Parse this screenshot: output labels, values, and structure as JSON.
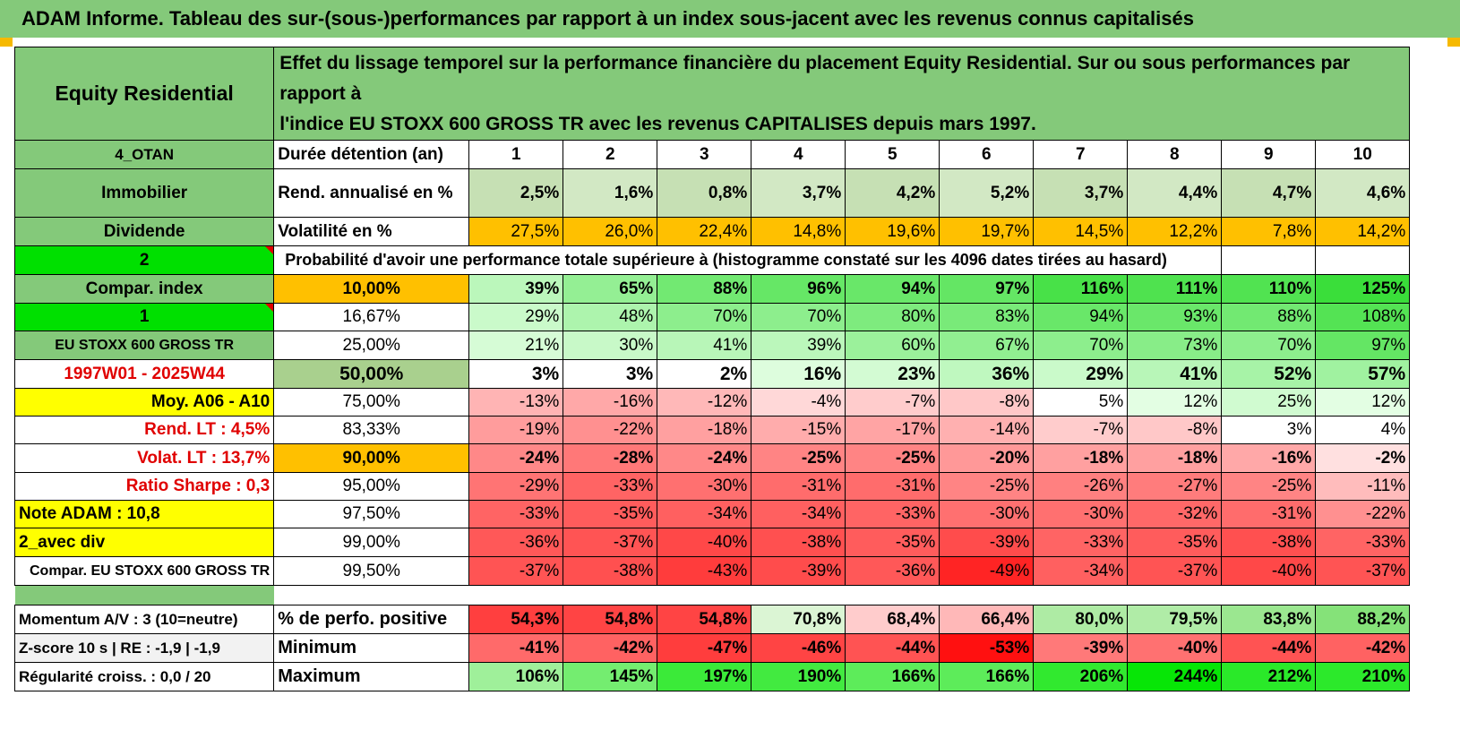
{
  "title": "ADAM Informe. Tableau des sur-(sous-)performances par rapport à un index sous-jacent avec les revenus connus capitalisés",
  "header": {
    "name": "Equity Residential",
    "description_line1": "Effet du lissage temporel sur la performance financière du placement Equity Residential. Sur ou sous performances par rapport à",
    "description_line2": "l'indice EU STOXX 600 GROSS TR avec les revenus CAPITALISES depuis mars 1997."
  },
  "years": [
    "1",
    "2",
    "3",
    "4",
    "5",
    "6",
    "7",
    "8",
    "9",
    "10"
  ],
  "rows_top": [
    {
      "left": "4_OTAN",
      "label": "Durée détention (an)"
    },
    {
      "left": "Immobilier",
      "label": "Rend. annualisé en %",
      "values": [
        "2,5%",
        "1,6%",
        "0,8%",
        "3,7%",
        "4,2%",
        "5,2%",
        "3,7%",
        "4,4%",
        "4,7%",
        "4,6%"
      ]
    },
    {
      "left": "Dividende",
      "label": "Volatilité en %",
      "values": [
        "27,5%",
        "26,0%",
        "22,4%",
        "14,8%",
        "19,6%",
        "19,7%",
        "14,5%",
        "12,2%",
        "7,8%",
        "14,2%"
      ]
    }
  ],
  "probability_header": {
    "left": "2",
    "text": "Probabilité d'avoir une performance totale supérieure à (histogramme constaté sur les 4096 dates tirées au hasard)"
  },
  "prob_rows": [
    {
      "left": "Compar. index",
      "pct": "10,00%",
      "values": [
        "39%",
        "65%",
        "88%",
        "96%",
        "94%",
        "97%",
        "116%",
        "111%",
        "110%",
        "125%"
      ]
    },
    {
      "left": "1",
      "pct": "16,67%",
      "values": [
        "29%",
        "48%",
        "70%",
        "70%",
        "80%",
        "83%",
        "94%",
        "93%",
        "88%",
        "108%"
      ]
    },
    {
      "left": "EU STOXX 600 GROSS TR",
      "pct": "25,00%",
      "values": [
        "21%",
        "30%",
        "41%",
        "39%",
        "60%",
        "67%",
        "70%",
        "73%",
        "70%",
        "97%"
      ]
    },
    {
      "left": "1997W01 - 2025W44",
      "pct": "50,00%",
      "values": [
        "3%",
        "3%",
        "2%",
        "16%",
        "23%",
        "36%",
        "29%",
        "41%",
        "52%",
        "57%"
      ]
    },
    {
      "left": "Moy. A06 - A10",
      "pct": "75,00%",
      "values": [
        "-13%",
        "-16%",
        "-12%",
        "-4%",
        "-7%",
        "-8%",
        "5%",
        "12%",
        "25%",
        "12%"
      ]
    },
    {
      "left": "Rend. LT :    4,5%",
      "pct": "83,33%",
      "values": [
        "-19%",
        "-22%",
        "-18%",
        "-15%",
        "-17%",
        "-14%",
        "-7%",
        "-8%",
        "3%",
        "4%"
      ]
    },
    {
      "left": "Volat. LT :    13,7%",
      "pct": "90,00%",
      "values": [
        "-24%",
        "-28%",
        "-24%",
        "-25%",
        "-25%",
        "-20%",
        "-18%",
        "-18%",
        "-16%",
        "-2%"
      ]
    },
    {
      "left": "Ratio Sharpe :     0,3",
      "pct": "95,00%",
      "values": [
        "-29%",
        "-33%",
        "-30%",
        "-31%",
        "-31%",
        "-25%",
        "-26%",
        "-27%",
        "-25%",
        "-11%"
      ]
    },
    {
      "left": "Note ADAM : 10,8",
      "pct": "97,50%",
      "values": [
        "-33%",
        "-35%",
        "-34%",
        "-34%",
        "-33%",
        "-30%",
        "-30%",
        "-32%",
        "-31%",
        "-22%"
      ]
    },
    {
      "left": "2_avec div",
      "pct": "99,00%",
      "values": [
        "-36%",
        "-37%",
        "-40%",
        "-38%",
        "-35%",
        "-39%",
        "-33%",
        "-35%",
        "-38%",
        "-33%"
      ]
    },
    {
      "left": "Compar. EU STOXX 600 GROSS TR",
      "pct": "99,50%",
      "values": [
        "-37%",
        "-38%",
        "-43%",
        "-39%",
        "-36%",
        "-49%",
        "-34%",
        "-37%",
        "-40%",
        "-37%"
      ]
    }
  ],
  "stats_rows": [
    {
      "left": "Momentum A/V : 3 (10=neutre)",
      "label": "% de perfo. positive",
      "values": [
        "54,3%",
        "54,8%",
        "54,8%",
        "70,8%",
        "68,4%",
        "66,4%",
        "80,0%",
        "79,5%",
        "83,8%",
        "88,2%"
      ]
    },
    {
      "left": "Z-score 10 s | RE : -1,9 | -1,9",
      "label": "Minimum",
      "values": [
        "-41%",
        "-42%",
        "-47%",
        "-46%",
        "-44%",
        "-53%",
        "-39%",
        "-40%",
        "-44%",
        "-42%"
      ]
    },
    {
      "left": "Régularité croiss. : 0,0 / 20",
      "label": "Maximum",
      "values": [
        "106%",
        "145%",
        "197%",
        "190%",
        "166%",
        "166%",
        "206%",
        "244%",
        "212%",
        "210%"
      ]
    }
  ],
  "colors": {
    "header_green": "#84c97a",
    "orange": "#ffc000",
    "yellow": "#ffff00",
    "bright_green": "#00e000",
    "light_green_row": "#c6e0b4",
    "median_green": "#a9d08e",
    "red_text": "#e00000"
  }
}
